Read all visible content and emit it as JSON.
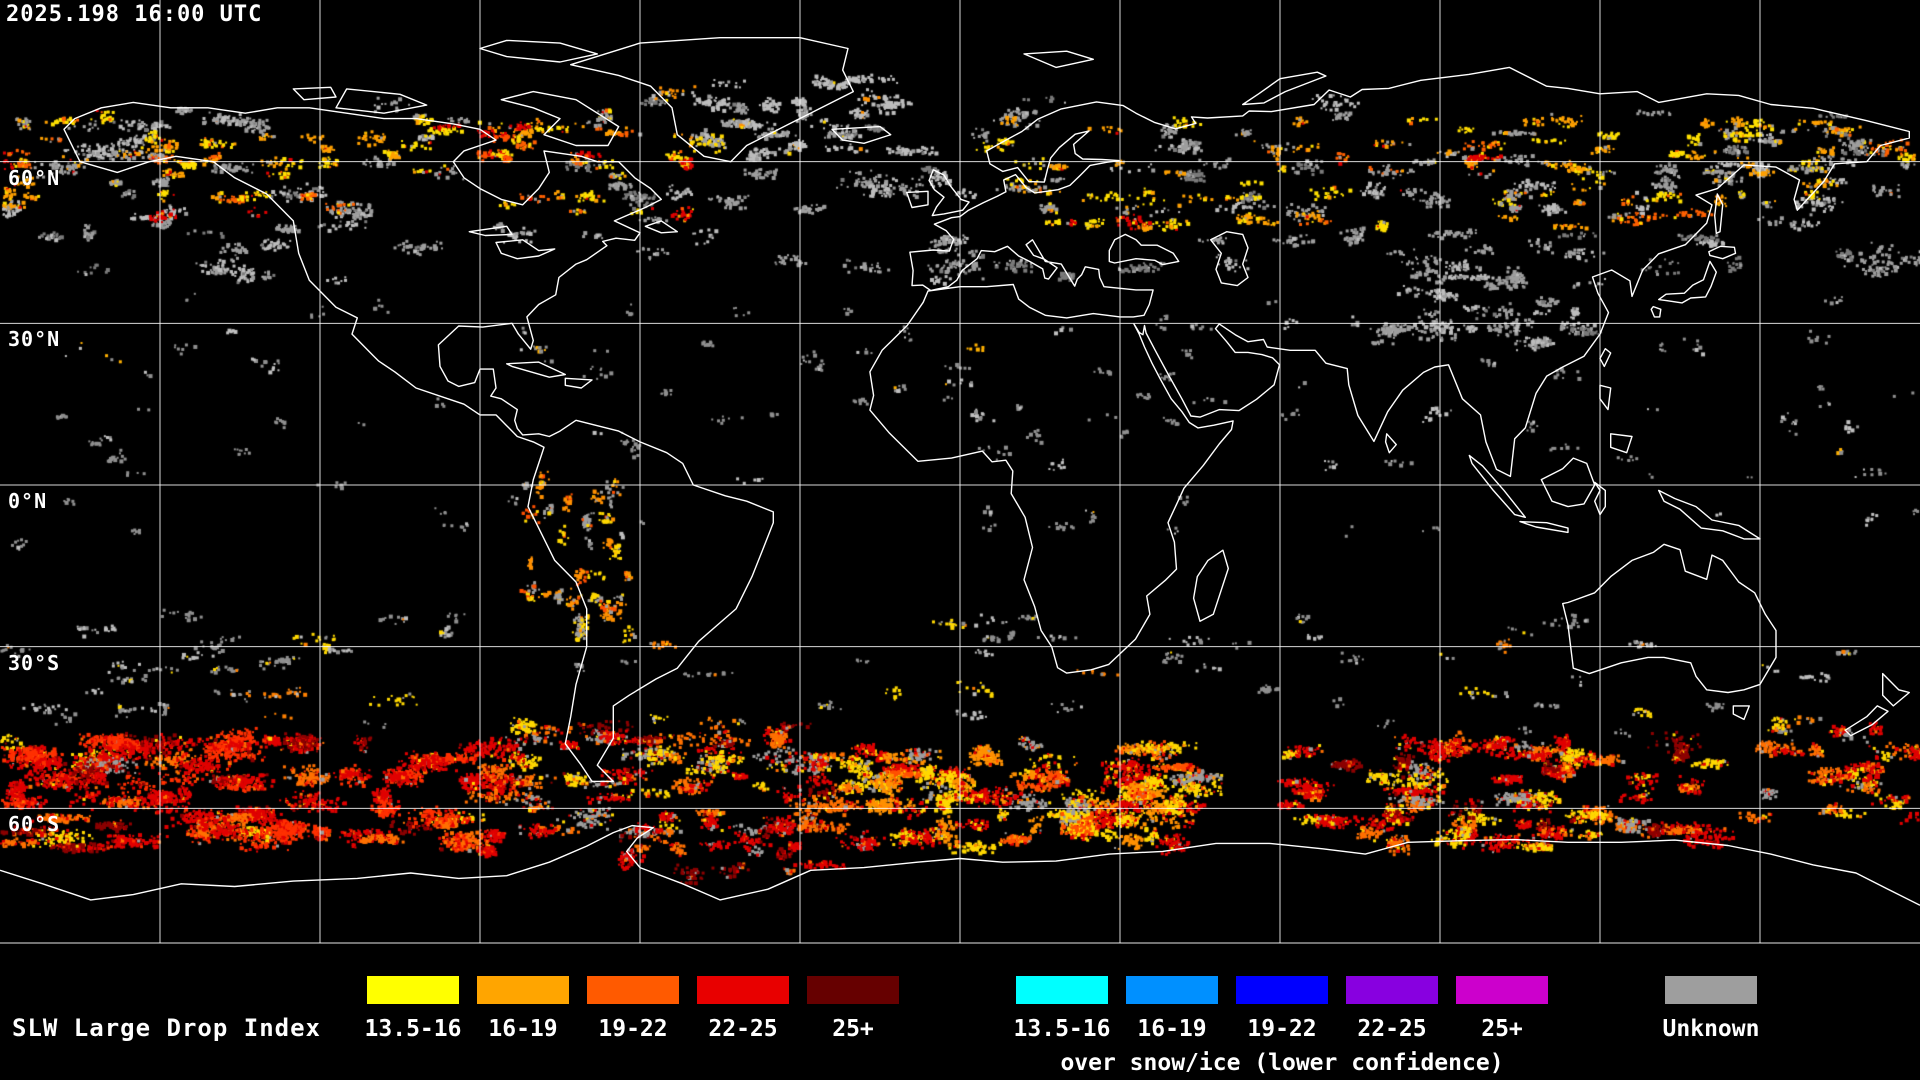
{
  "header": {
    "timestamp": "2025.198 16:00 UTC"
  },
  "map": {
    "latitude_labels": [
      {
        "text": "60°N",
        "lat": 60
      },
      {
        "text": "30°N",
        "lat": 30
      },
      {
        "text": "0°N",
        "lat": 0
      },
      {
        "text": "30°S",
        "lat": -30
      },
      {
        "text": "60°S",
        "lat": -60
      }
    ],
    "grid": {
      "lon_step_deg": 30,
      "lat_step_deg": 30
    },
    "colors": {
      "background": "#000000",
      "coastline": "#ffffff",
      "graticule": "#ffffff"
    }
  },
  "legend": {
    "title": "SLW Large Drop Index",
    "subtitle": "over snow/ice (lower confidence)",
    "liquid": [
      {
        "label": "13.5-16",
        "color": "#ffff00"
      },
      {
        "label": "16-19",
        "color": "#ffa500"
      },
      {
        "label": "19-22",
        "color": "#ff5a00"
      },
      {
        "label": "22-25",
        "color": "#e80000"
      },
      {
        "label": "25+",
        "color": "#660000"
      }
    ],
    "snow_ice": [
      {
        "label": "13.5-16",
        "color": "#00ffff"
      },
      {
        "label": "16-19",
        "color": "#0090ff"
      },
      {
        "label": "19-22",
        "color": "#0000ff"
      },
      {
        "label": "22-25",
        "color": "#8800e0"
      },
      {
        "label": "25+",
        "color": "#cc00cc"
      }
    ],
    "unknown": {
      "label": "Unknown",
      "color": "#9e9e9e"
    }
  },
  "speckle_bands": [
    {
      "name": "north-clouds",
      "lon": [
        -180,
        180
      ],
      "lat": [
        38,
        72
      ],
      "clusters": 150,
      "dots": [
        6,
        40
      ],
      "spread": [
        3,
        1.2
      ],
      "palette": [
        [
          "#9e9e9e",
          0.5
        ],
        [
          "#bdbdbd",
          0.3
        ],
        [
          "#7a7a7a",
          0.2
        ]
      ]
    },
    {
      "name": "asia-gray",
      "lon": [
        78,
        118
      ],
      "lat": [
        25,
        44
      ],
      "clusters": 45,
      "dots": [
        6,
        26
      ],
      "spread": [
        2.4,
        1.2
      ],
      "palette": [
        [
          "#9e9e9e",
          0.6
        ],
        [
          "#bdbdbd",
          0.25
        ],
        [
          "#7a7a7a",
          0.15
        ]
      ]
    },
    {
      "name": "tropics-sparse",
      "lon": [
        -180,
        180
      ],
      "lat": [
        -12,
        35
      ],
      "clusters": 120,
      "dots": [
        2,
        10
      ],
      "spread": [
        2,
        1
      ],
      "palette": [
        [
          "#8f8f8f",
          0.75
        ],
        [
          "#c0c0c0",
          0.2
        ],
        [
          "#ffb000",
          0.05
        ]
      ]
    },
    {
      "name": "s-midlat-gray",
      "lon": [
        -180,
        180
      ],
      "lat": [
        -46,
        -24
      ],
      "clusters": 80,
      "dots": [
        4,
        18
      ],
      "spread": [
        2.6,
        1
      ],
      "palette": [
        [
          "#8f8f8f",
          0.65
        ],
        [
          "#bdbdbd",
          0.2
        ],
        [
          "#ffd800",
          0.1
        ],
        [
          "#ff8000",
          0.05
        ]
      ]
    },
    {
      "name": "natl-clouds",
      "lon": [
        -55,
        -8
      ],
      "lat": [
        58,
        76
      ],
      "clusters": 32,
      "dots": [
        8,
        30
      ],
      "spread": [
        2.5,
        1.2
      ],
      "palette": [
        [
          "#bdbdbd",
          0.5
        ],
        [
          "#9e9e9e",
          0.28
        ],
        [
          "#ffd800",
          0.13
        ],
        [
          "#ff9000",
          0.09
        ]
      ]
    },
    {
      "name": "north-slw",
      "lon": [
        -180,
        -50
      ],
      "lat": [
        50,
        69
      ],
      "clusters": 75,
      "dots": [
        6,
        28
      ],
      "spread": [
        2.2,
        1
      ],
      "palette": [
        [
          "#ffe000",
          0.3
        ],
        [
          "#ffa000",
          0.3
        ],
        [
          "#ff6000",
          0.15
        ],
        [
          "#e00000",
          0.1
        ],
        [
          "#9e9e9e",
          0.15
        ]
      ]
    },
    {
      "name": "eurasia-slw",
      "lon": [
        5,
        140
      ],
      "lat": [
        48,
        68
      ],
      "clusters": 85,
      "dots": [
        6,
        28
      ],
      "spread": [
        2.5,
        1
      ],
      "palette": [
        [
          "#ffe000",
          0.32
        ],
        [
          "#ffa000",
          0.3
        ],
        [
          "#ff6000",
          0.14
        ],
        [
          "#e00000",
          0.08
        ],
        [
          "#9e9e9e",
          0.16
        ]
      ]
    },
    {
      "name": "bering-slw",
      "lon": [
        140,
        180
      ],
      "lat": [
        52,
        68
      ],
      "clusters": 28,
      "dots": [
        6,
        26
      ],
      "spread": [
        2.2,
        1
      ],
      "palette": [
        [
          "#ffe000",
          0.35
        ],
        [
          "#ffa000",
          0.3
        ],
        [
          "#ff6000",
          0.15
        ],
        [
          "#9e9e9e",
          0.2
        ]
      ]
    },
    {
      "name": "hudson-red",
      "lon": [
        -96,
        -80
      ],
      "lat": [
        60,
        68
      ],
      "clusters": 7,
      "dots": [
        10,
        30
      ],
      "spread": [
        1.2,
        0.8
      ],
      "palette": [
        [
          "#e00000",
          0.5
        ],
        [
          "#ff5000",
          0.3
        ],
        [
          "#ffd800",
          0.2
        ]
      ]
    },
    {
      "name": "andes",
      "lon": [
        -82,
        -62
      ],
      "lat": [
        -28,
        2
      ],
      "clusters": 38,
      "dots": [
        5,
        20
      ],
      "spread": [
        1,
        1.7
      ],
      "palette": [
        [
          "#ffd800",
          0.35
        ],
        [
          "#ff9000",
          0.3
        ],
        [
          "#ff5000",
          0.15
        ],
        [
          "#9e9e9e",
          0.2
        ]
      ]
    },
    {
      "name": "so-mid",
      "lon": [
        -85,
        -20
      ],
      "lat": [
        -64,
        -44
      ],
      "clusters": 65,
      "dots": [
        10,
        60
      ],
      "spread": [
        3,
        1.3
      ],
      "palette": [
        [
          "#ff7000",
          0.3
        ],
        [
          "#e00000",
          0.25
        ],
        [
          "#ffd800",
          0.2
        ],
        [
          "#9e9e9e",
          0.15
        ],
        [
          "#8c0000",
          0.1
        ]
      ]
    },
    {
      "name": "so-heavy-red-west",
      "lon": [
        -180,
        -85
      ],
      "lat": [
        -68,
        -47
      ],
      "clusters": 95,
      "dots": [
        20,
        120
      ],
      "spread": [
        3.5,
        1.5
      ],
      "palette": [
        [
          "#e00000",
          0.45
        ],
        [
          "#ff3000",
          0.2
        ],
        [
          "#ff7000",
          0.15
        ],
        [
          "#8c0000",
          0.12
        ],
        [
          "#ffd800",
          0.04
        ],
        [
          "#9e9e9e",
          0.04
        ]
      ]
    },
    {
      "name": "weddell",
      "lon": [
        -65,
        -15
      ],
      "lat": [
        -72,
        -62
      ],
      "clusters": 26,
      "dots": [
        10,
        50
      ],
      "spread": [
        2.6,
        1.2
      ],
      "palette": [
        [
          "#e00000",
          0.45
        ],
        [
          "#ff7000",
          0.25
        ],
        [
          "#8c0000",
          0.15
        ],
        [
          "#9e9e9e",
          0.15
        ]
      ]
    },
    {
      "name": "so-atlantic-bright",
      "lon": [
        -20,
        45
      ],
      "lat": [
        -67,
        -48
      ],
      "clusters": 85,
      "dots": [
        15,
        90
      ],
      "spread": [
        3,
        1.4
      ],
      "palette": [
        [
          "#ff9000",
          0.3
        ],
        [
          "#ffd800",
          0.25
        ],
        [
          "#e00000",
          0.25
        ],
        [
          "#ff5000",
          0.1
        ],
        [
          "#9e9e9e",
          0.1
        ]
      ]
    },
    {
      "name": "so-indian",
      "lon": [
        60,
        145
      ],
      "lat": [
        -67,
        -47
      ],
      "clusters": 75,
      "dots": [
        15,
        80
      ],
      "spread": [
        3,
        1.4
      ],
      "palette": [
        [
          "#e00000",
          0.35
        ],
        [
          "#ff7000",
          0.25
        ],
        [
          "#ffd800",
          0.2
        ],
        [
          "#8c0000",
          0.1
        ],
        [
          "#9e9e9e",
          0.1
        ]
      ]
    },
    {
      "name": "so-nz",
      "lon": [
        148,
        180
      ],
      "lat": [
        -63,
        -44
      ],
      "clusters": 28,
      "dots": [
        8,
        40
      ],
      "spread": [
        2.5,
        1.2
      ],
      "palette": [
        [
          "#e00000",
          0.4
        ],
        [
          "#ff7000",
          0.3
        ],
        [
          "#ffd800",
          0.15
        ],
        [
          "#9e9e9e",
          0.15
        ]
      ]
    }
  ]
}
